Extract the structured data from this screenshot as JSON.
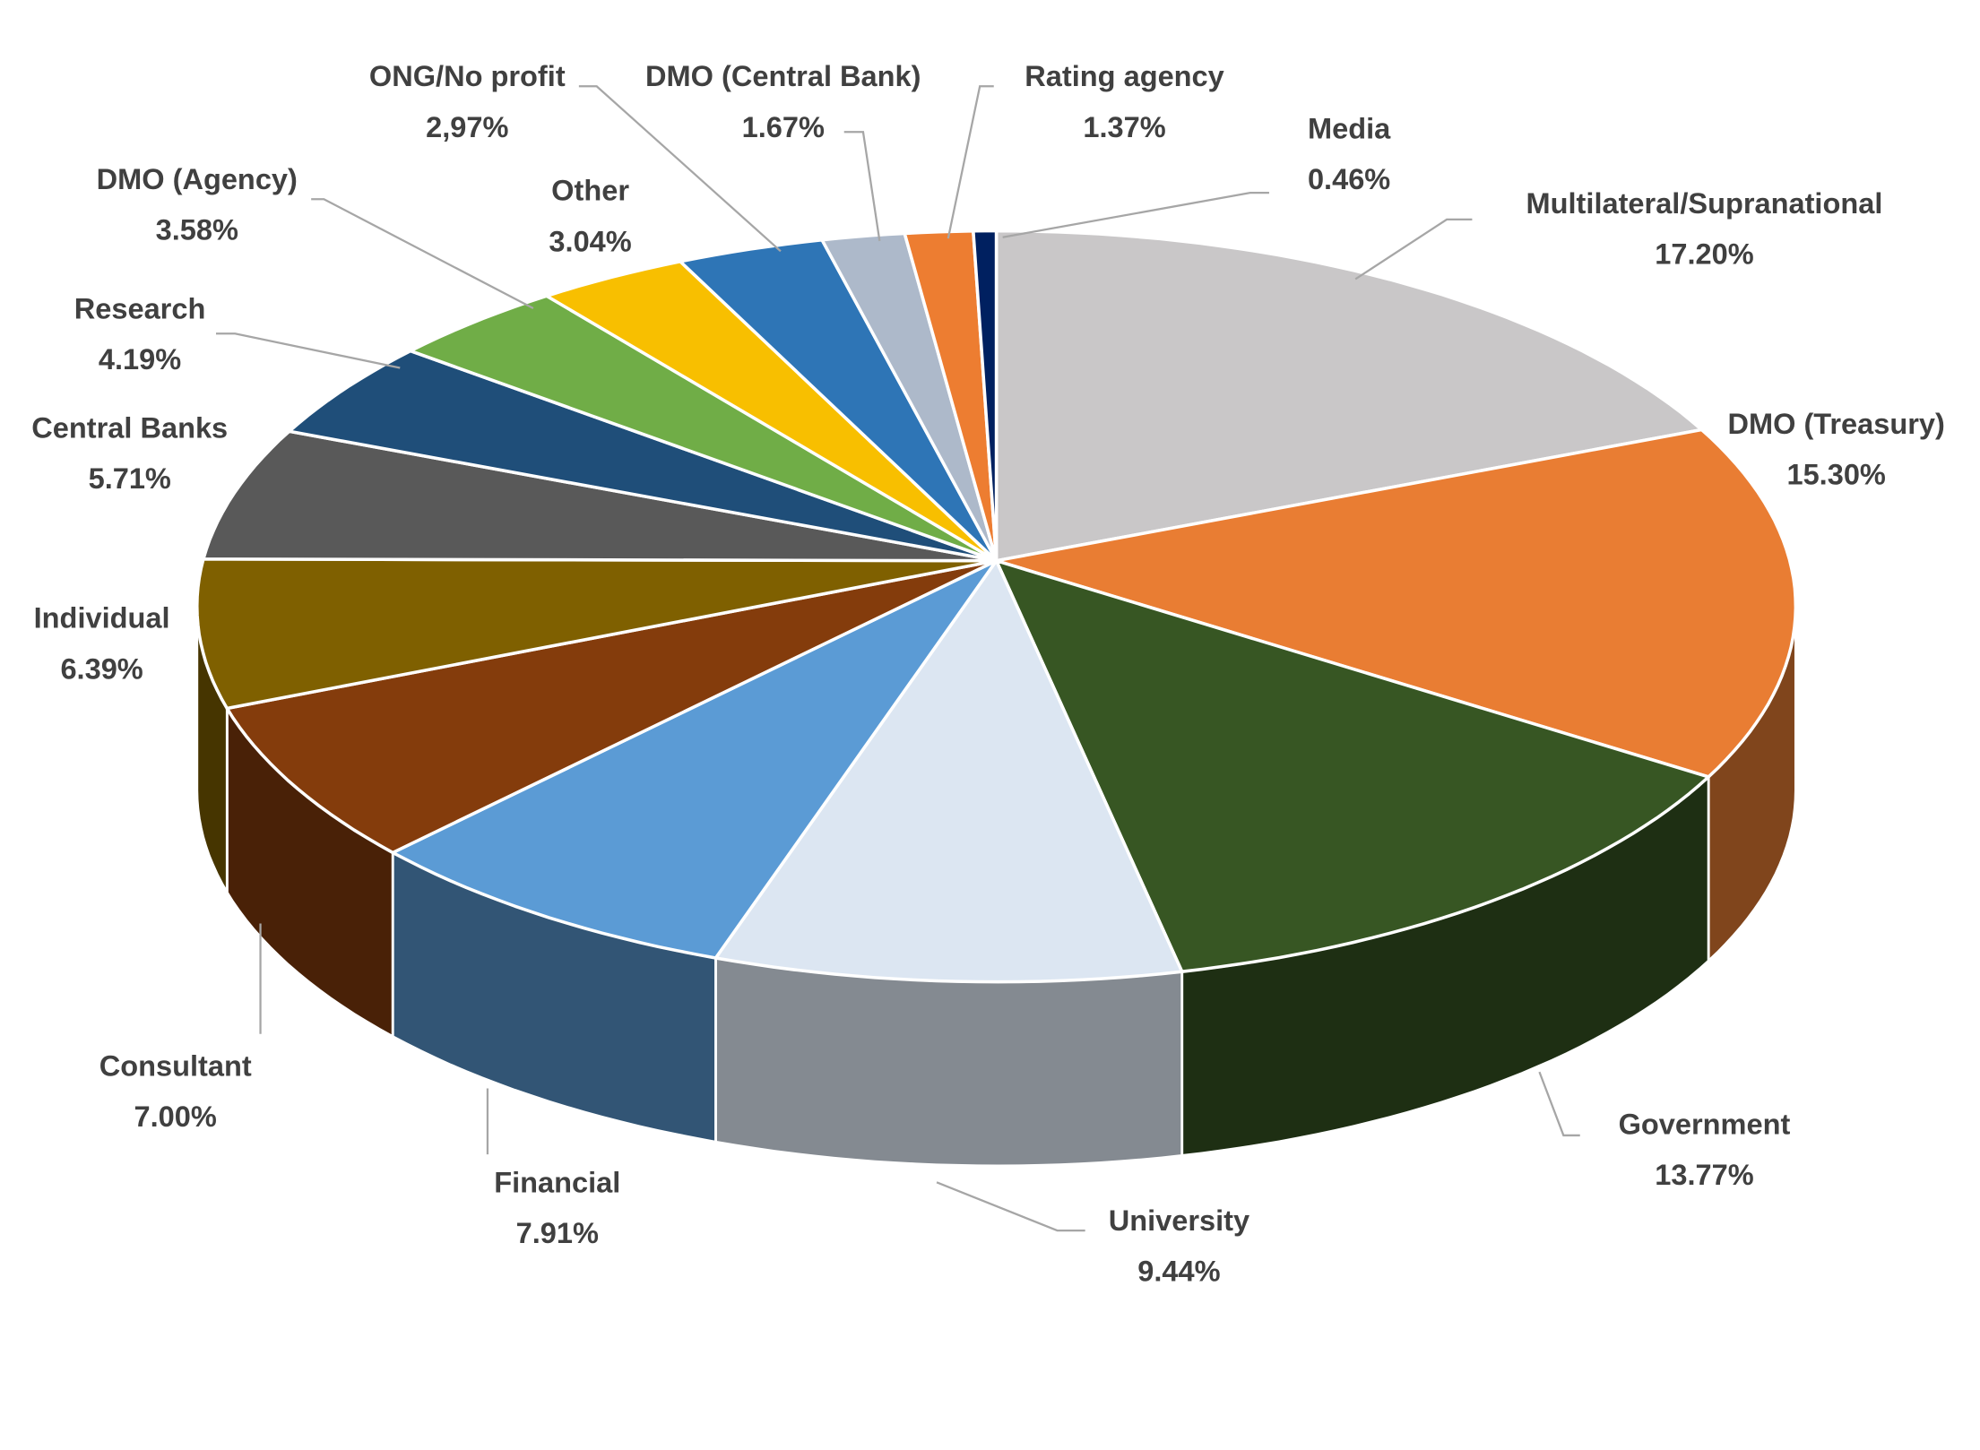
{
  "chart_data": {
    "type": "pie",
    "style": "3d-exploded-off",
    "start": "top, clockwise",
    "slices": [
      {
        "label": "Multilateral/Supranational",
        "value": 17.2,
        "value_label": "17.20%",
        "color": "#c9c7c8"
      },
      {
        "label": "DMO (Treasury)",
        "value": 15.3,
        "value_label": "15.30%",
        "color": "#e97d33"
      },
      {
        "label": "Government",
        "value": 13.77,
        "value_label": "13.77%",
        "color": "#375623"
      },
      {
        "label": "University",
        "value": 9.44,
        "value_label": "9.44%",
        "color": "#dce6f2"
      },
      {
        "label": "Financial",
        "value": 7.91,
        "value_label": "7.91%",
        "color": "#5b9bd5"
      },
      {
        "label": "Consultant",
        "value": 7.0,
        "value_label": "7.00%",
        "color": "#843c0c"
      },
      {
        "label": "Individual",
        "value": 6.39,
        "value_label": "6.39%",
        "color": "#7f6000"
      },
      {
        "label": "Central Banks",
        "value": 5.71,
        "value_label": "5.71%",
        "color": "#595959"
      },
      {
        "label": "Research",
        "value": 4.19,
        "value_label": "4.19%",
        "color": "#1f4e79"
      },
      {
        "label": "DMO (Agency)",
        "value": 3.58,
        "value_label": "3.58%",
        "color": "#70ad47"
      },
      {
        "label": "Other",
        "value": 3.04,
        "value_label": "3.04%",
        "color": "#f8bf00"
      },
      {
        "label": "ONG/No profit",
        "value": 2.97,
        "value_label": "2,97%",
        "color": "#2e75b6"
      },
      {
        "label": "DMO (Central Bank)",
        "value": 1.67,
        "value_label": "1.67%",
        "color": "#adb9ca"
      },
      {
        "label": "Rating agency",
        "value": 1.37,
        "value_label": "1.37%",
        "color": "#ed7d31"
      },
      {
        "label": "Media",
        "value": 0.46,
        "value_label": "0.46%",
        "color": "#002060"
      }
    ]
  }
}
